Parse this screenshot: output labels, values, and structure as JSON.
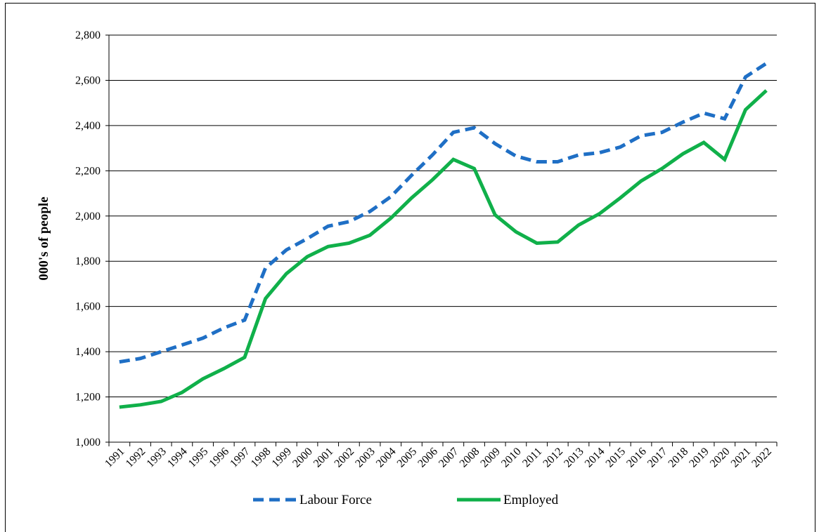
{
  "chart_data": {
    "type": "line",
    "y_label": "000's of people",
    "categories": [
      "1991",
      "1992",
      "1993",
      "1994",
      "1995",
      "1996",
      "1997",
      "1998",
      "1999",
      "2000",
      "2001",
      "2002",
      "2003",
      "2004",
      "2005",
      "2006",
      "2007",
      "2008",
      "2009",
      "2010",
      "2011",
      "2012",
      "2013",
      "2014",
      "2015",
      "2016",
      "2017",
      "2018",
      "2019",
      "2020",
      "2021",
      "2022"
    ],
    "series": [
      {
        "name": "Labour Force",
        "color": "#1f6fc5",
        "dash": true,
        "values": [
          1355,
          1370,
          1400,
          1430,
          1460,
          1505,
          1540,
          1770,
          1850,
          1900,
          1955,
          1975,
          2020,
          2085,
          2180,
          2270,
          2370,
          2390,
          2320,
          2265,
          2240,
          2240,
          2270,
          2280,
          2305,
          2355,
          2370,
          2415,
          2455,
          2430,
          2615,
          2675
        ]
      },
      {
        "name": "Employed",
        "color": "#10b04a",
        "dash": false,
        "values": [
          1155,
          1165,
          1180,
          1220,
          1280,
          1325,
          1375,
          1635,
          1745,
          1820,
          1865,
          1880,
          1915,
          1990,
          2080,
          2160,
          2250,
          2210,
          2005,
          1930,
          1880,
          1885,
          1960,
          2010,
          2080,
          2155,
          2210,
          2275,
          2325,
          2250,
          2470,
          2555
        ]
      }
    ],
    "ylim": [
      1000,
      2800
    ],
    "yticks": [
      {
        "value": 1000,
        "label": "1,000"
      },
      {
        "value": 1200,
        "label": "1,200"
      },
      {
        "value": 1400,
        "label": "1,400"
      },
      {
        "value": 1600,
        "label": "1,600"
      },
      {
        "value": 1800,
        "label": "1,800"
      },
      {
        "value": 2000,
        "label": "2,000"
      },
      {
        "value": 2200,
        "label": "2,200"
      },
      {
        "value": 2400,
        "label": "2,400"
      },
      {
        "value": 2600,
        "label": "2,600"
      },
      {
        "value": 2800,
        "label": "2,800"
      }
    ],
    "grid": true
  }
}
